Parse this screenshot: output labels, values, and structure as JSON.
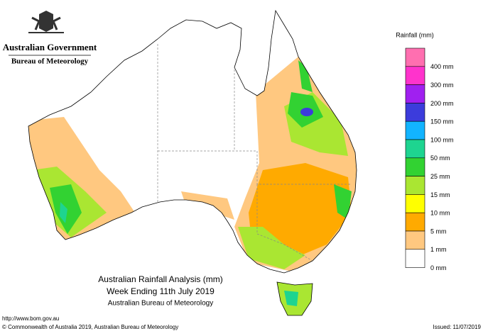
{
  "header": {
    "government": "Australian Government",
    "agency": "Bureau of Meteorology"
  },
  "legend": {
    "title": "Rainfall (mm)",
    "colors": [
      "#ff6fb0",
      "#ff33cc",
      "#a020f0",
      "#3c3cdc",
      "#12b4ff",
      "#1ed490",
      "#32d232",
      "#aae632",
      "#ffff00",
      "#ffaa00",
      "#ffc880",
      "#ffffff"
    ],
    "labels": [
      "400 mm",
      "300 mm",
      "200 mm",
      "150 mm",
      "100 mm",
      "50 mm",
      "25 mm",
      "15 mm",
      "10 mm",
      "5 mm",
      "1 mm",
      "0 mm"
    ]
  },
  "title": {
    "line1": "Australian Rainfall Analysis (mm)",
    "line2": "Week Ending 11th July 2019",
    "line3": "Australian Bureau of Meteorology"
  },
  "footer": {
    "url": "http://www.bom.gov.au",
    "copyright": "© Commonwealth of Australia 2019, Australian Bureau of Meteorology",
    "issued": "Issued: 11/07/2019"
  }
}
